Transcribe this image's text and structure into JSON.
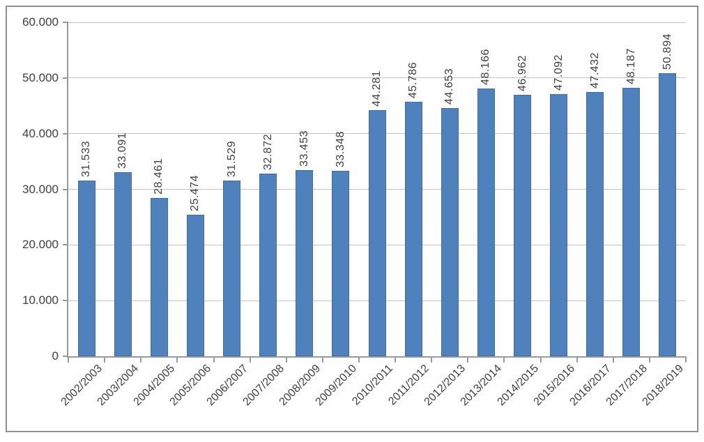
{
  "colors": {
    "background": "#ffffff",
    "frame_border": "#8f8f8f",
    "bar_fill": "#4f81bd",
    "bar_border": "#406ea3",
    "gridline": "#c3c3c3",
    "axis_line": "#9a9a9a",
    "text": "#3f3f3f"
  },
  "chart_data": {
    "type": "bar",
    "title": "",
    "xlabel": "",
    "ylabel": "",
    "legend": "none",
    "grid": true,
    "ylim": [
      0,
      60000
    ],
    "y_tick_step": 10000,
    "y_tick_labels": [
      "60.000",
      "50.000",
      "40.000",
      "30.000",
      "20.000",
      "10.000",
      "0"
    ],
    "y_tick_values": [
      60000,
      50000,
      40000,
      30000,
      20000,
      10000,
      0
    ],
    "categories": [
      "2002/2003",
      "2003/2004",
      "2004/2005",
      "2005/2006",
      "2006/2007",
      "2007/2008",
      "2008/2009",
      "2009/2010",
      "2010/2011",
      "2011/2012",
      "2012/2013",
      "2013/2014",
      "2014/2015",
      "2015/2016",
      "2016/2017",
      "2017/2018",
      "2018/2019"
    ],
    "values": [
      31533,
      33091,
      28461,
      25474,
      31529,
      32872,
      33453,
      33348,
      44281,
      45786,
      44653,
      48166,
      46962,
      47092,
      47432,
      48187,
      50894
    ],
    "data_labels": [
      "31.533",
      "33.091",
      "28.461",
      "25.474",
      "31.529",
      "32.872",
      "33.453",
      "33.348",
      "44.281",
      "45.786",
      "44.653",
      "48.166",
      "46.962",
      "47.092",
      "47.432",
      "48.187",
      "50.894"
    ],
    "data_label_rotation": 90,
    "x_label_rotation": 45
  }
}
